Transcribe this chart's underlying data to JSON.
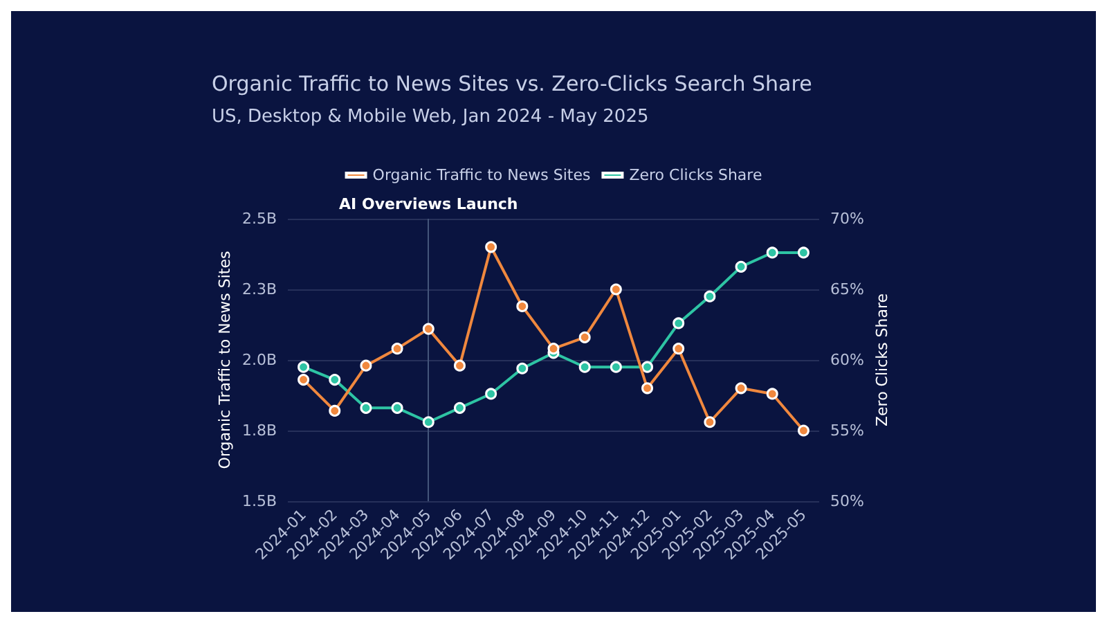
{
  "chart_data": {
    "type": "line",
    "title": "Organic Traffic to News Sites vs. Zero-Clicks Search Share",
    "subtitle": "US, Desktop & Mobile Web, Jan 2024 - May 2025",
    "ylabel": "Organic Traffic to News Sites",
    "y2label": "Zero Clicks Share",
    "categories": [
      "2024-01",
      "2024-02",
      "2024-03",
      "2024-04",
      "2024-05",
      "2024-06",
      "2024-07",
      "2024-08",
      "2024-09",
      "2024-10",
      "2024-11",
      "2024-12",
      "2025-01",
      "2025-02",
      "2025-03",
      "2025-04",
      "2025-05"
    ],
    "series": [
      {
        "name": "Organic Traffic to News Sites",
        "color": "#f0883e",
        "values": [
          1.93,
          1.82,
          1.98,
          2.04,
          2.11,
          1.98,
          2.4,
          2.19,
          2.04,
          2.08,
          2.25,
          1.9,
          2.04,
          1.78,
          1.9,
          1.88,
          1.75
        ]
      },
      {
        "name": "Zero Clicks Share",
        "color": "#2ec4a4",
        "axis": "y2",
        "values": [
          59.5,
          58.6,
          56.6,
          56.6,
          55.6,
          56.6,
          57.6,
          59.4,
          60.5,
          59.5,
          59.5,
          59.5,
          62.6,
          64.5,
          66.6,
          67.6,
          67.6
        ]
      }
    ],
    "ylim": [
      1.5,
      2.5
    ],
    "yticks": [
      {
        "value": 1.5,
        "label": "1.5B"
      },
      {
        "value": 1.75,
        "label": "1.8B"
      },
      {
        "value": 2.0,
        "label": "2.0B"
      },
      {
        "value": 2.25,
        "label": "2.3B"
      },
      {
        "value": 2.5,
        "label": "2.5B"
      }
    ],
    "y2lim": [
      50,
      70
    ],
    "y2ticks": [
      {
        "value": 50,
        "label": "50%"
      },
      {
        "value": 55,
        "label": "55%"
      },
      {
        "value": 60,
        "label": "60%"
      },
      {
        "value": 65,
        "label": "65%"
      },
      {
        "value": 70,
        "label": "70%"
      }
    ],
    "ref_lines": [
      {
        "axis": "x",
        "value": "2024-05",
        "label": "AI Overviews Launch",
        "color": "#44557a"
      }
    ],
    "grid": "y",
    "legend": "top",
    "marker": "circle",
    "line_style": "solid"
  }
}
